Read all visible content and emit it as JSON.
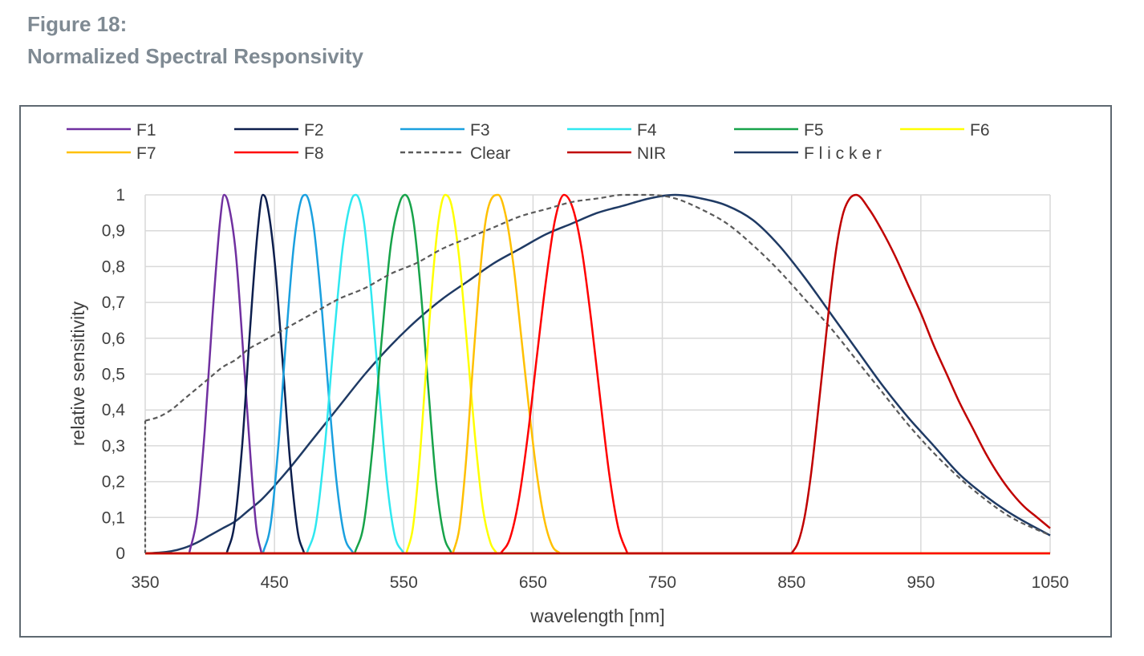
{
  "figure": {
    "number": "Figure 18:",
    "caption": "Normalized Spectral Responsivity"
  },
  "chart_data": {
    "type": "line",
    "title": "",
    "xlabel": "wavelength [nm]",
    "ylabel": "relative sensitivity",
    "xlim": [
      350,
      1050
    ],
    "ylim": [
      0,
      1
    ],
    "x_ticks": [
      "350",
      "450",
      "550",
      "650",
      "750",
      "850",
      "950",
      "1050"
    ],
    "y_ticks": [
      "0",
      "0,1",
      "0,2",
      "0,3",
      "0,4",
      "0,5",
      "0,6",
      "0,7",
      "0,8",
      "0,9",
      "1"
    ],
    "x_gridlines": [
      450,
      550,
      650,
      750,
      850,
      950,
      1050
    ],
    "y_gridlines": [
      0.1,
      0.2,
      0.3,
      0.4,
      0.5,
      0.6,
      0.7,
      0.8,
      0.9,
      1.0
    ],
    "legend_position": "top",
    "series": [
      {
        "name": "F1",
        "color": "#7030a0",
        "dash": "solid",
        "x": [
          384,
          390,
          396,
          402,
          408,
          411,
          414,
          420,
          426,
          432,
          436,
          440
        ],
        "y": [
          0,
          0.1,
          0.34,
          0.66,
          0.93,
          1.0,
          0.98,
          0.84,
          0.55,
          0.24,
          0.07,
          0
        ]
      },
      {
        "name": "F2",
        "color": "#0c1e4d",
        "dash": "solid",
        "x": [
          413,
          419,
          425,
          431,
          437,
          441,
          444,
          450,
          456,
          462,
          468,
          473
        ],
        "y": [
          0,
          0.08,
          0.3,
          0.62,
          0.9,
          1.0,
          0.98,
          0.82,
          0.55,
          0.26,
          0.06,
          0
        ]
      },
      {
        "name": "F3",
        "color": "#1aa0df",
        "dash": "solid",
        "x": [
          441,
          447,
          453,
          459,
          465,
          471,
          474,
          480,
          486,
          492,
          498,
          504,
          511
        ],
        "y": [
          0,
          0.08,
          0.3,
          0.6,
          0.86,
          0.99,
          1.0,
          0.92,
          0.71,
          0.44,
          0.2,
          0.05,
          0
        ]
      },
      {
        "name": "F4",
        "color": "#2fe8f0",
        "dash": "solid",
        "x": [
          475,
          482,
          489,
          496,
          503,
          510,
          513,
          519,
          525,
          531,
          537,
          543,
          550
        ],
        "y": [
          0,
          0.08,
          0.3,
          0.6,
          0.86,
          0.99,
          1.0,
          0.93,
          0.72,
          0.45,
          0.2,
          0.05,
          0
        ]
      },
      {
        "name": "F5",
        "color": "#17a34a",
        "dash": "solid",
        "x": [
          512,
          519,
          526,
          533,
          540,
          547,
          551,
          557,
          563,
          569,
          575,
          581,
          587
        ],
        "y": [
          0,
          0.08,
          0.3,
          0.6,
          0.86,
          0.98,
          1.0,
          0.94,
          0.74,
          0.46,
          0.2,
          0.05,
          0
        ]
      },
      {
        "name": "F6",
        "color": "#ffff00",
        "dash": "solid",
        "x": [
          552,
          557,
          562,
          567,
          572,
          577,
          582,
          587,
          593,
          599,
          605,
          611,
          617,
          622
        ],
        "y": [
          0,
          0.07,
          0.25,
          0.5,
          0.75,
          0.93,
          1.0,
          0.97,
          0.82,
          0.58,
          0.33,
          0.13,
          0.03,
          0
        ]
      },
      {
        "name": "F7",
        "color": "#ffc000",
        "dash": "solid",
        "x": [
          588,
          593,
          598,
          603,
          608,
          613,
          618,
          623,
          629,
          635,
          641,
          647,
          653,
          659,
          665,
          671
        ],
        "y": [
          0,
          0.07,
          0.25,
          0.5,
          0.74,
          0.92,
          0.99,
          1.0,
          0.94,
          0.8,
          0.6,
          0.4,
          0.22,
          0.09,
          0.02,
          0
        ]
      },
      {
        "name": "F8",
        "color": "#ff0000",
        "dash": "solid",
        "x": [
          625,
          632,
          639,
          646,
          653,
          660,
          667,
          674,
          681,
          688,
          695,
          702,
          709,
          716,
          723
        ],
        "y": [
          0,
          0.04,
          0.15,
          0.33,
          0.55,
          0.76,
          0.93,
          1.0,
          0.96,
          0.84,
          0.65,
          0.43,
          0.22,
          0.07,
          0
        ]
      },
      {
        "name": "Clear",
        "color": "#5a5a5a",
        "dash": "dashed",
        "x": [
          350,
          360,
          370,
          380,
          390,
          400,
          410,
          420,
          430,
          440,
          460,
          480,
          500,
          520,
          540,
          560,
          580,
          600,
          620,
          640,
          660,
          680,
          700,
          720,
          740,
          760,
          780,
          800,
          820,
          840,
          860,
          880,
          900,
          920,
          940,
          960,
          980,
          1000,
          1020,
          1050
        ],
        "y": [
          0.37,
          0.38,
          0.4,
          0.43,
          0.46,
          0.49,
          0.52,
          0.54,
          0.57,
          0.59,
          0.63,
          0.67,
          0.71,
          0.74,
          0.78,
          0.81,
          0.85,
          0.88,
          0.91,
          0.94,
          0.96,
          0.98,
          0.99,
          1.0,
          1.0,
          0.99,
          0.96,
          0.92,
          0.86,
          0.79,
          0.71,
          0.63,
          0.54,
          0.45,
          0.36,
          0.28,
          0.21,
          0.15,
          0.1,
          0.05
        ]
      },
      {
        "name": "NIR",
        "color": "#c00000",
        "dash": "solid",
        "x": [
          850,
          855,
          860,
          865,
          870,
          875,
          880,
          885,
          890,
          895,
          900,
          910,
          920,
          930,
          940,
          950,
          960,
          970,
          980,
          990,
          1000,
          1010,
          1020,
          1030,
          1040,
          1050
        ],
        "y": [
          0,
          0.03,
          0.1,
          0.22,
          0.38,
          0.55,
          0.72,
          0.86,
          0.95,
          0.99,
          1.0,
          0.96,
          0.9,
          0.83,
          0.75,
          0.67,
          0.58,
          0.5,
          0.42,
          0.35,
          0.28,
          0.22,
          0.17,
          0.13,
          0.1,
          0.07
        ]
      },
      {
        "name": "F l i c k e r",
        "color": "#1f3a64",
        "dash": "solid",
        "x": [
          350,
          360,
          370,
          380,
          390,
          400,
          410,
          420,
          430,
          440,
          460,
          480,
          500,
          520,
          540,
          560,
          580,
          600,
          620,
          640,
          660,
          680,
          700,
          720,
          740,
          760,
          780,
          800,
          820,
          840,
          860,
          880,
          900,
          920,
          940,
          960,
          980,
          1000,
          1020,
          1050
        ],
        "y": [
          0,
          0.002,
          0.006,
          0.015,
          0.03,
          0.05,
          0.07,
          0.09,
          0.12,
          0.15,
          0.23,
          0.32,
          0.41,
          0.5,
          0.58,
          0.65,
          0.71,
          0.76,
          0.81,
          0.85,
          0.89,
          0.92,
          0.95,
          0.97,
          0.99,
          1.0,
          0.99,
          0.97,
          0.93,
          0.86,
          0.77,
          0.67,
          0.57,
          0.47,
          0.38,
          0.3,
          0.22,
          0.16,
          0.11,
          0.05
        ]
      }
    ]
  }
}
